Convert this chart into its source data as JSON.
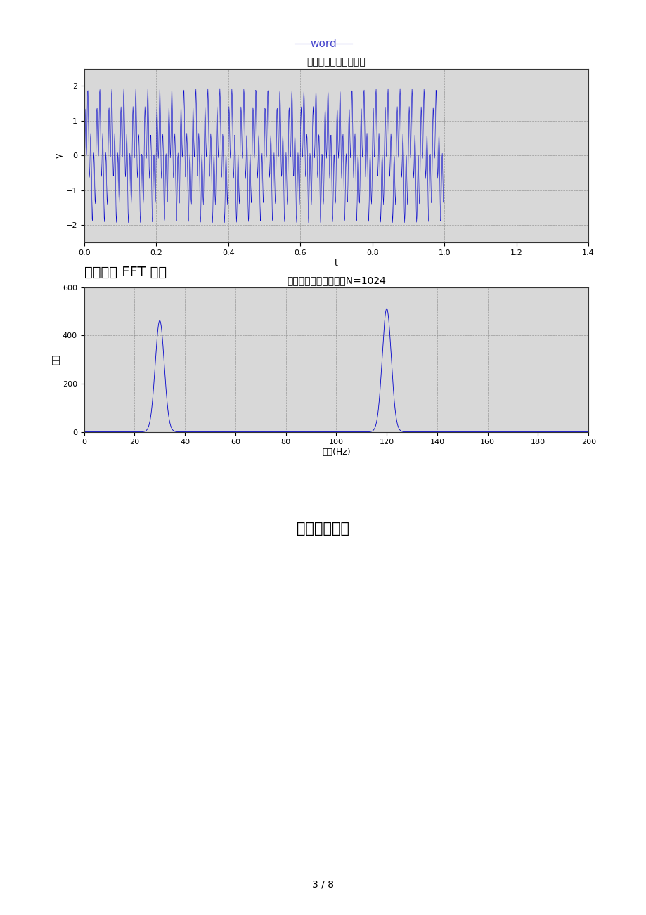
{
  "page_bg": "#ffffff",
  "page_width": 9.2,
  "page_height": 13.02,
  "header_text": "word",
  "header_color": "#4444cc",
  "plot1_title": "正弦信号混合时域波形",
  "plot1_xlabel": "t",
  "plot1_ylabel": "y",
  "plot1_xlim": [
    0,
    1.4
  ],
  "plot1_ylim": [
    -2.5,
    2.5
  ],
  "plot1_xticks": [
    0,
    0.2,
    0.4,
    0.6,
    0.8,
    1.0,
    1.2,
    1.4
  ],
  "plot1_yticks": [
    -2,
    -1,
    0,
    1,
    2
  ],
  "plot1_bg": "#d8d8d8",
  "plot1_line_color": "#0000cc",
  "plot1_freq1": 30,
  "plot1_freq2": 120,
  "plot1_amp1": 1.0,
  "plot1_amp2": 1.0,
  "plot1_sample_rate": 1024,
  "plot1_duration": 1.0,
  "text_fft": "对其进展 FFT 变换",
  "plot2_title": "正弦信号混合幅频谱图N=1024",
  "plot2_xlabel": "频率(Hz)",
  "plot2_ylabel": "幅值",
  "plot2_xlim": [
    0,
    200
  ],
  "plot2_ylim": [
    0,
    600
  ],
  "plot2_xticks": [
    0,
    20,
    40,
    60,
    80,
    100,
    120,
    140,
    160,
    180,
    200
  ],
  "plot2_yticks": [
    0,
    200,
    400,
    600
  ],
  "plot2_bg": "#d8d8d8",
  "plot2_line_color": "#0000cc",
  "plot2_peak1_freq": 30,
  "plot2_peak1_amp": 462,
  "plot2_peak2_freq": 120,
  "plot2_peak2_amp": 512,
  "text_voice": "语音信号波形",
  "footer_text": "3 / 8",
  "footer_color": "#000000"
}
